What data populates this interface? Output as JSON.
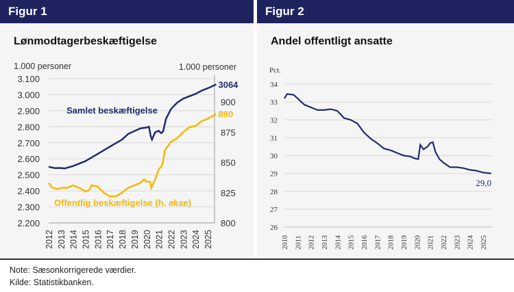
{
  "notes": {
    "note": "Note:  Sæsonkorrigerede værdier.",
    "source": "Kilde:  Statistikbanken."
  },
  "chart_data": [
    {
      "type": "line",
      "header": "Figur 1",
      "title": "Lønmodtagerbeskæftigelse",
      "ylabel_left": "1.000 personer",
      "ylabel_right": "1.000 personer",
      "ylim_left": [
        2200,
        3100
      ],
      "ylim_right": [
        800,
        900
      ],
      "yticks_left": [
        "2.200",
        "2.300",
        "2.400",
        "2.500",
        "2.600",
        "2.700",
        "2.800",
        "2.900",
        "3.000",
        "3.100"
      ],
      "yticks_right": [
        "800",
        "825",
        "850",
        "875",
        "900"
      ],
      "xticks": [
        "2012",
        "2013",
        "2014",
        "2015",
        "2016",
        "2017",
        "2018",
        "2019",
        "2020",
        "2021",
        "2022",
        "2023",
        "2024",
        "2025"
      ],
      "grid": true,
      "series": [
        {
          "name": "Samlet beskæftigelse",
          "axis": "left",
          "color": "#232a6e",
          "end_label": "3064",
          "points": [
            [
              2012.0,
              2550
            ],
            [
              2012.5,
              2542
            ],
            [
              2013.0,
              2543
            ],
            [
              2013.3,
              2540
            ],
            [
              2014.0,
              2555
            ],
            [
              2015.0,
              2585
            ],
            [
              2016.0,
              2630
            ],
            [
              2017.0,
              2675
            ],
            [
              2018.0,
              2720
            ],
            [
              2018.5,
              2755
            ],
            [
              2019.5,
              2790
            ],
            [
              2020.0,
              2795
            ],
            [
              2020.2,
              2800
            ],
            [
              2020.35,
              2740
            ],
            [
              2020.45,
              2720
            ],
            [
              2020.7,
              2765
            ],
            [
              2021.0,
              2775
            ],
            [
              2021.2,
              2760
            ],
            [
              2021.35,
              2770
            ],
            [
              2021.6,
              2850
            ],
            [
              2022.0,
              2910
            ],
            [
              2022.5,
              2950
            ],
            [
              2023.0,
              2975
            ],
            [
              2023.5,
              2990
            ],
            [
              2024.0,
              3005
            ],
            [
              2024.5,
              3025
            ],
            [
              2025.0,
              3040
            ],
            [
              2025.7,
              3064
            ]
          ]
        },
        {
          "name": "Offentlig beskæftigelse (h. akse)",
          "axis": "right",
          "color": "#f5b800",
          "end_label": "890",
          "points": [
            [
              2012.0,
              833
            ],
            [
              2012.3,
              829
            ],
            [
              2012.7,
              828
            ],
            [
              2013.0,
              829
            ],
            [
              2013.5,
              829
            ],
            [
              2014.0,
              831
            ],
            [
              2014.5,
              829
            ],
            [
              2015.0,
              826
            ],
            [
              2015.3,
              827
            ],
            [
              2015.5,
              831
            ],
            [
              2016.0,
              830
            ],
            [
              2016.5,
              825
            ],
            [
              2017.0,
              822
            ],
            [
              2017.5,
              822
            ],
            [
              2018.0,
              825
            ],
            [
              2018.5,
              829
            ],
            [
              2019.0,
              831
            ],
            [
              2019.5,
              833
            ],
            [
              2019.8,
              836
            ],
            [
              2020.0,
              834
            ],
            [
              2020.3,
              834
            ],
            [
              2020.4,
              829
            ],
            [
              2020.7,
              836
            ],
            [
              2021.0,
              844
            ],
            [
              2021.3,
              848
            ],
            [
              2021.5,
              860
            ],
            [
              2022.0,
              867
            ],
            [
              2022.5,
              870
            ],
            [
              2023.0,
              875
            ],
            [
              2023.5,
              879
            ],
            [
              2024.0,
              880
            ],
            [
              2024.5,
              884
            ],
            [
              2025.0,
              886
            ],
            [
              2025.7,
              890
            ]
          ]
        }
      ]
    },
    {
      "type": "line",
      "header": "Figur 2",
      "title": "Andel offentligt ansatte",
      "ylabel": "Pct.",
      "ylim": [
        26,
        34
      ],
      "yticks": [
        "26",
        "27",
        "28",
        "29",
        "30",
        "31",
        "32",
        "33",
        "34"
      ],
      "xticks": [
        "2010",
        "2011",
        "2012",
        "2013",
        "2014",
        "2015",
        "2016",
        "2017",
        "2018",
        "2019",
        "2020",
        "2021",
        "2022",
        "2023",
        "2024",
        "2025"
      ],
      "grid": true,
      "series": [
        {
          "color": "#232a6e",
          "end_label": "29,0",
          "points": [
            [
              2010.0,
              33.2
            ],
            [
              2010.2,
              33.45
            ],
            [
              2010.7,
              33.4
            ],
            [
              2011.0,
              33.2
            ],
            [
              2011.5,
              32.85
            ],
            [
              2012.0,
              32.7
            ],
            [
              2012.5,
              32.55
            ],
            [
              2013.0,
              32.55
            ],
            [
              2013.5,
              32.6
            ],
            [
              2014.0,
              32.5
            ],
            [
              2014.5,
              32.1
            ],
            [
              2015.0,
              32.0
            ],
            [
              2015.5,
              31.8
            ],
            [
              2016.0,
              31.3
            ],
            [
              2016.5,
              30.95
            ],
            [
              2017.0,
              30.7
            ],
            [
              2017.5,
              30.4
            ],
            [
              2018.0,
              30.3
            ],
            [
              2018.5,
              30.15
            ],
            [
              2019.0,
              30.0
            ],
            [
              2019.5,
              29.95
            ],
            [
              2019.8,
              29.85
            ],
            [
              2020.1,
              29.8
            ],
            [
              2020.25,
              30.6
            ],
            [
              2020.5,
              30.35
            ],
            [
              2020.8,
              30.5
            ],
            [
              2021.0,
              30.7
            ],
            [
              2021.2,
              30.75
            ],
            [
              2021.4,
              30.2
            ],
            [
              2021.7,
              29.8
            ],
            [
              2022.0,
              29.6
            ],
            [
              2022.5,
              29.35
            ],
            [
              2023.0,
              29.35
            ],
            [
              2023.5,
              29.3
            ],
            [
              2024.0,
              29.2
            ],
            [
              2024.5,
              29.15
            ],
            [
              2025.0,
              29.05
            ],
            [
              2025.6,
              29.0
            ]
          ]
        }
      ]
    }
  ]
}
